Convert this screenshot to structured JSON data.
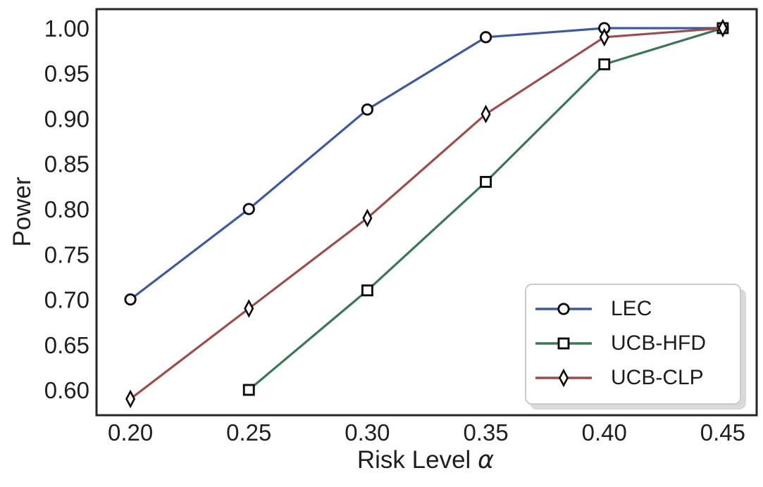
{
  "chart_data": {
    "type": "line",
    "title": "",
    "xlabel_text": "Risk Level",
    "xlabel_symbol": "α",
    "ylabel": "Power",
    "x": [
      0.2,
      0.25,
      0.3,
      0.35,
      0.4,
      0.45
    ],
    "x_tick_labels": [
      "0.20",
      "0.25",
      "0.30",
      "0.35",
      "0.40",
      "0.45"
    ],
    "y_ticks": [
      0.6,
      0.65,
      0.7,
      0.75,
      0.8,
      0.85,
      0.9,
      0.95,
      1.0
    ],
    "y_tick_labels": [
      "0.60",
      "0.65",
      "0.70",
      "0.75",
      "0.80",
      "0.85",
      "0.90",
      "0.95",
      "1.00"
    ],
    "xlim": [
      0.1857,
      0.4643
    ],
    "ylim": [
      0.572,
      1.021
    ],
    "grid": false,
    "legend_position": "lower right",
    "series": [
      {
        "name": "LEC",
        "color": "#40589c",
        "marker": "circle",
        "values": [
          0.7,
          0.8,
          0.91,
          0.99,
          1.0,
          1.0
        ]
      },
      {
        "name": "UCB-HFD",
        "color": "#3d7657",
        "marker": "square",
        "values": [
          null,
          0.6,
          0.71,
          0.83,
          0.96,
          1.0
        ]
      },
      {
        "name": "UCB-CLP",
        "color": "#9a4e4e",
        "marker": "diamond",
        "values": [
          0.59,
          0.69,
          0.79,
          0.905,
          0.99,
          1.0
        ]
      }
    ],
    "colors": {
      "spine": "#262626",
      "text": "#1f1f1f",
      "marker_edge": "#0d0d0d",
      "marker_fill": "#ffffff"
    }
  }
}
